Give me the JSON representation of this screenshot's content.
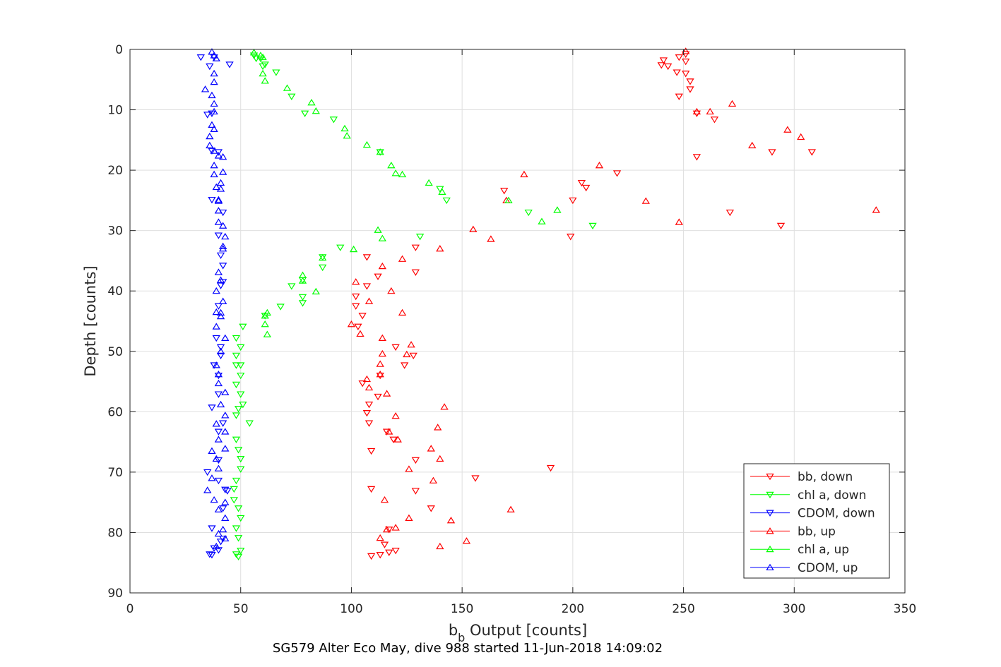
{
  "caption": "SG579 Alter Eco May, dive 988 started 11-Jun-2018 14:09:02",
  "chart_data": {
    "type": "scatter",
    "xlabel_main": "b",
    "xlabel_sub": "b",
    "xlabel_rest": " Output [counts]",
    "ylabel": "Depth [counts]",
    "xlim": [
      0,
      350
    ],
    "ylim": [
      0,
      90
    ],
    "y_reversed": true,
    "grid": true,
    "legend_position": "bottom-right",
    "x_ticks": [
      "0",
      "50",
      "100",
      "150",
      "200",
      "250",
      "300",
      "350"
    ],
    "y_ticks": [
      "0",
      "10",
      "20",
      "30",
      "40",
      "50",
      "60",
      "70",
      "80",
      "90"
    ],
    "series": [
      {
        "name": "bb, down",
        "color": "#ff0000",
        "marker": "triangle-down",
        "points": [
          [
            241,
            1.8
          ],
          [
            240,
            2.6
          ],
          [
            248,
            1.3
          ],
          [
            251,
            0.8
          ],
          [
            251,
            2.0
          ],
          [
            243,
            2.8
          ],
          [
            247,
            3.8
          ],
          [
            251,
            4.0
          ],
          [
            253,
            5.3
          ],
          [
            253,
            6.6
          ],
          [
            248,
            7.8
          ],
          [
            256,
            10.6
          ],
          [
            264,
            11.6
          ],
          [
            308,
            17.0
          ],
          [
            290,
            17.0
          ],
          [
            256,
            17.8
          ],
          [
            220,
            20.5
          ],
          [
            206,
            22.9
          ],
          [
            204,
            22.1
          ],
          [
            200,
            25.0
          ],
          [
            169,
            23.4
          ],
          [
            271,
            27.0
          ],
          [
            294,
            29.2
          ],
          [
            199,
            31.0
          ],
          [
            129,
            32.8
          ],
          [
            107,
            34.4
          ],
          [
            129,
            36.9
          ],
          [
            112,
            37.6
          ],
          [
            107,
            39.2
          ],
          [
            102,
            40.9
          ],
          [
            102,
            42.5
          ],
          [
            105,
            44.1
          ],
          [
            103,
            45.9
          ],
          [
            120,
            49.3
          ],
          [
            128,
            50.7
          ],
          [
            124,
            52.3
          ],
          [
            113,
            54.0
          ],
          [
            105,
            55.3
          ],
          [
            112,
            57.5
          ],
          [
            108,
            58.8
          ],
          [
            107,
            60.2
          ],
          [
            108,
            61.9
          ],
          [
            119,
            64.6
          ],
          [
            116,
            63.3
          ],
          [
            109,
            66.5
          ],
          [
            129,
            68.0
          ],
          [
            156,
            71.0
          ],
          [
            190,
            69.3
          ],
          [
            109,
            72.8
          ],
          [
            129,
            73.1
          ],
          [
            136,
            76.0
          ],
          [
            117,
            79.5
          ],
          [
            115,
            82.0
          ],
          [
            109,
            83.9
          ],
          [
            113,
            83.7
          ],
          [
            120,
            83.0
          ],
          [
            117,
            83.3
          ]
        ]
      },
      {
        "name": "chl a, down",
        "color": "#00ff00",
        "marker": "triangle-down",
        "points": [
          [
            56,
            1.0
          ],
          [
            57,
            1.5
          ],
          [
            59,
            1.5
          ],
          [
            61,
            2.5
          ],
          [
            66,
            3.8
          ],
          [
            60,
            2.8
          ],
          [
            73,
            7.8
          ],
          [
            79,
            10.6
          ],
          [
            92,
            11.6
          ],
          [
            113,
            17.0
          ],
          [
            143,
            25.0
          ],
          [
            140,
            23.1
          ],
          [
            180,
            27.0
          ],
          [
            209,
            29.2
          ],
          [
            131,
            31.0
          ],
          [
            95,
            32.8
          ],
          [
            87,
            34.4
          ],
          [
            87,
            36.1
          ],
          [
            78,
            38.2
          ],
          [
            73,
            39.2
          ],
          [
            78,
            41.0
          ],
          [
            78,
            42.0
          ],
          [
            68,
            42.6
          ],
          [
            61,
            44.1
          ],
          [
            51,
            45.9
          ],
          [
            48,
            47.8
          ],
          [
            50,
            49.3
          ],
          [
            48,
            50.7
          ],
          [
            48,
            52.3
          ],
          [
            50,
            52.3
          ],
          [
            50,
            54.0
          ],
          [
            48,
            55.5
          ],
          [
            50,
            57.1
          ],
          [
            51,
            58.8
          ],
          [
            49,
            59.5
          ],
          [
            48,
            60.6
          ],
          [
            54,
            61.9
          ],
          [
            48,
            64.6
          ],
          [
            49,
            66.3
          ],
          [
            50,
            67.8
          ],
          [
            50,
            69.5
          ],
          [
            48,
            71.4
          ],
          [
            47,
            72.8
          ],
          [
            47,
            74.6
          ],
          [
            49,
            76.0
          ],
          [
            50,
            77.6
          ],
          [
            48,
            79.3
          ],
          [
            49,
            80.9
          ],
          [
            50,
            83.0
          ],
          [
            48,
            83.6
          ],
          [
            49,
            84.0
          ]
        ]
      },
      {
        "name": "CDOM, down",
        "color": "#0000ff",
        "marker": "triangle-down",
        "points": [
          [
            32,
            1.3
          ],
          [
            38,
            1.3
          ],
          [
            36,
            2.8
          ],
          [
            45,
            2.5
          ],
          [
            37,
            10.6
          ],
          [
            35,
            10.8
          ],
          [
            37,
            16.8
          ],
          [
            40,
            17.0
          ],
          [
            37,
            24.9
          ],
          [
            42,
            27.0
          ],
          [
            40,
            30.8
          ],
          [
            41,
            34.1
          ],
          [
            42,
            35.8
          ],
          [
            42,
            38.5
          ],
          [
            41,
            39.1
          ],
          [
            40,
            42.5
          ],
          [
            39,
            47.8
          ],
          [
            41,
            49.3
          ],
          [
            41,
            50.7
          ],
          [
            38,
            52.3
          ],
          [
            40,
            54.0
          ],
          [
            40,
            57.1
          ],
          [
            37,
            59.3
          ],
          [
            42,
            61.9
          ],
          [
            40,
            63.3
          ],
          [
            40,
            68.0
          ],
          [
            35,
            70.0
          ],
          [
            40,
            71.4
          ],
          [
            43,
            72.9
          ],
          [
            44,
            73.1
          ],
          [
            42,
            76.0
          ],
          [
            37,
            79.3
          ],
          [
            42,
            81.0
          ],
          [
            41,
            81.5
          ],
          [
            38,
            82.6
          ],
          [
            37,
            83.7
          ],
          [
            36,
            83.6
          ],
          [
            40,
            82.9
          ]
        ]
      },
      {
        "name": "bb, up",
        "color": "#ff0000",
        "marker": "triangle-up",
        "points": [
          [
            251,
            0.3
          ],
          [
            256,
            10.3
          ],
          [
            262,
            10.3
          ],
          [
            272,
            9.0
          ],
          [
            297,
            13.3
          ],
          [
            303,
            14.5
          ],
          [
            281,
            15.9
          ],
          [
            212,
            19.2
          ],
          [
            178,
            20.7
          ],
          [
            170,
            25.0
          ],
          [
            233,
            25.1
          ],
          [
            337,
            26.6
          ],
          [
            248,
            28.6
          ],
          [
            155,
            29.8
          ],
          [
            163,
            31.4
          ],
          [
            140,
            33.0
          ],
          [
            123,
            34.7
          ],
          [
            114,
            35.9
          ],
          [
            102,
            38.5
          ],
          [
            118,
            40.0
          ],
          [
            108,
            41.7
          ],
          [
            123,
            43.6
          ],
          [
            100,
            45.5
          ],
          [
            104,
            47.1
          ],
          [
            114,
            47.8
          ],
          [
            127,
            48.9
          ],
          [
            114,
            50.4
          ],
          [
            125,
            50.5
          ],
          [
            113,
            52.1
          ],
          [
            107,
            54.6
          ],
          [
            108,
            56.0
          ],
          [
            113,
            53.8
          ],
          [
            116,
            57.0
          ],
          [
            142,
            59.2
          ],
          [
            120,
            60.7
          ],
          [
            139,
            62.6
          ],
          [
            117,
            63.3
          ],
          [
            121,
            64.6
          ],
          [
            136,
            66.1
          ],
          [
            140,
            67.8
          ],
          [
            126,
            69.5
          ],
          [
            137,
            71.4
          ],
          [
            115,
            74.6
          ],
          [
            172,
            76.2
          ],
          [
            126,
            77.6
          ],
          [
            145,
            78.0
          ],
          [
            120,
            79.2
          ],
          [
            152,
            81.4
          ],
          [
            113,
            80.9
          ],
          [
            140,
            82.3
          ],
          [
            116,
            79.5
          ]
        ]
      },
      {
        "name": "chl a, up",
        "color": "#00ff00",
        "marker": "triangle-up",
        "points": [
          [
            56,
            0.5
          ],
          [
            59,
            1.0
          ],
          [
            60,
            1.3
          ],
          [
            60,
            4.0
          ],
          [
            61,
            5.2
          ],
          [
            71,
            6.4
          ],
          [
            82,
            8.8
          ],
          [
            84,
            10.2
          ],
          [
            97,
            13.1
          ],
          [
            98,
            14.3
          ],
          [
            107,
            15.8
          ],
          [
            113,
            17.0
          ],
          [
            118,
            19.2
          ],
          [
            123,
            20.7
          ],
          [
            120,
            20.5
          ],
          [
            135,
            22.1
          ],
          [
            141,
            23.6
          ],
          [
            171,
            25.0
          ],
          [
            193,
            26.6
          ],
          [
            186,
            28.5
          ],
          [
            112,
            29.9
          ],
          [
            114,
            31.3
          ],
          [
            101,
            33.1
          ],
          [
            87,
            34.5
          ],
          [
            78,
            37.4
          ],
          [
            78,
            38.3
          ],
          [
            84,
            40.1
          ],
          [
            62,
            43.6
          ],
          [
            61,
            45.5
          ],
          [
            62,
            47.2
          ],
          [
            61,
            44.1
          ]
        ]
      },
      {
        "name": "CDOM, up",
        "color": "#0000ff",
        "marker": "triangle-up",
        "points": [
          [
            37,
            0.4
          ],
          [
            38,
            1.0
          ],
          [
            39,
            1.5
          ],
          [
            38,
            4.0
          ],
          [
            38,
            5.4
          ],
          [
            34,
            6.6
          ],
          [
            37,
            7.6
          ],
          [
            38,
            9.0
          ],
          [
            38,
            10.3
          ],
          [
            37,
            12.5
          ],
          [
            38,
            13.2
          ],
          [
            36,
            14.4
          ],
          [
            36,
            15.9
          ],
          [
            38,
            16.8
          ],
          [
            40,
            17.6
          ],
          [
            42,
            17.8
          ],
          [
            38,
            19.2
          ],
          [
            38,
            20.7
          ],
          [
            42,
            20.3
          ],
          [
            41,
            22.1
          ],
          [
            39,
            22.8
          ],
          [
            41,
            23.1
          ],
          [
            40,
            24.9
          ],
          [
            40,
            25.1
          ],
          [
            40,
            26.7
          ],
          [
            40,
            28.6
          ],
          [
            42,
            29.2
          ],
          [
            43,
            31.0
          ],
          [
            42,
            33.0
          ],
          [
            42,
            32.6
          ],
          [
            40,
            36.9
          ],
          [
            41,
            38.2
          ],
          [
            39,
            40.0
          ],
          [
            42,
            41.7
          ],
          [
            41,
            43.6
          ],
          [
            39,
            43.5
          ],
          [
            41,
            44.2
          ],
          [
            39,
            45.9
          ],
          [
            43,
            47.8
          ],
          [
            41,
            50.0
          ],
          [
            39,
            52.3
          ],
          [
            40,
            53.8
          ],
          [
            40,
            55.3
          ],
          [
            43,
            56.8
          ],
          [
            41,
            58.8
          ],
          [
            43,
            60.6
          ],
          [
            39,
            62.0
          ],
          [
            43,
            63.3
          ],
          [
            40,
            64.6
          ],
          [
            37,
            66.5
          ],
          [
            43,
            66.1
          ],
          [
            39,
            67.8
          ],
          [
            40,
            69.4
          ],
          [
            37,
            71.0
          ],
          [
            35,
            73.0
          ],
          [
            38,
            74.6
          ],
          [
            43,
            75.0
          ],
          [
            40,
            76.2
          ],
          [
            43,
            77.6
          ],
          [
            42,
            79.5
          ],
          [
            40,
            80.2
          ],
          [
            43,
            81.0
          ],
          [
            39,
            82.3
          ]
        ]
      }
    ]
  }
}
